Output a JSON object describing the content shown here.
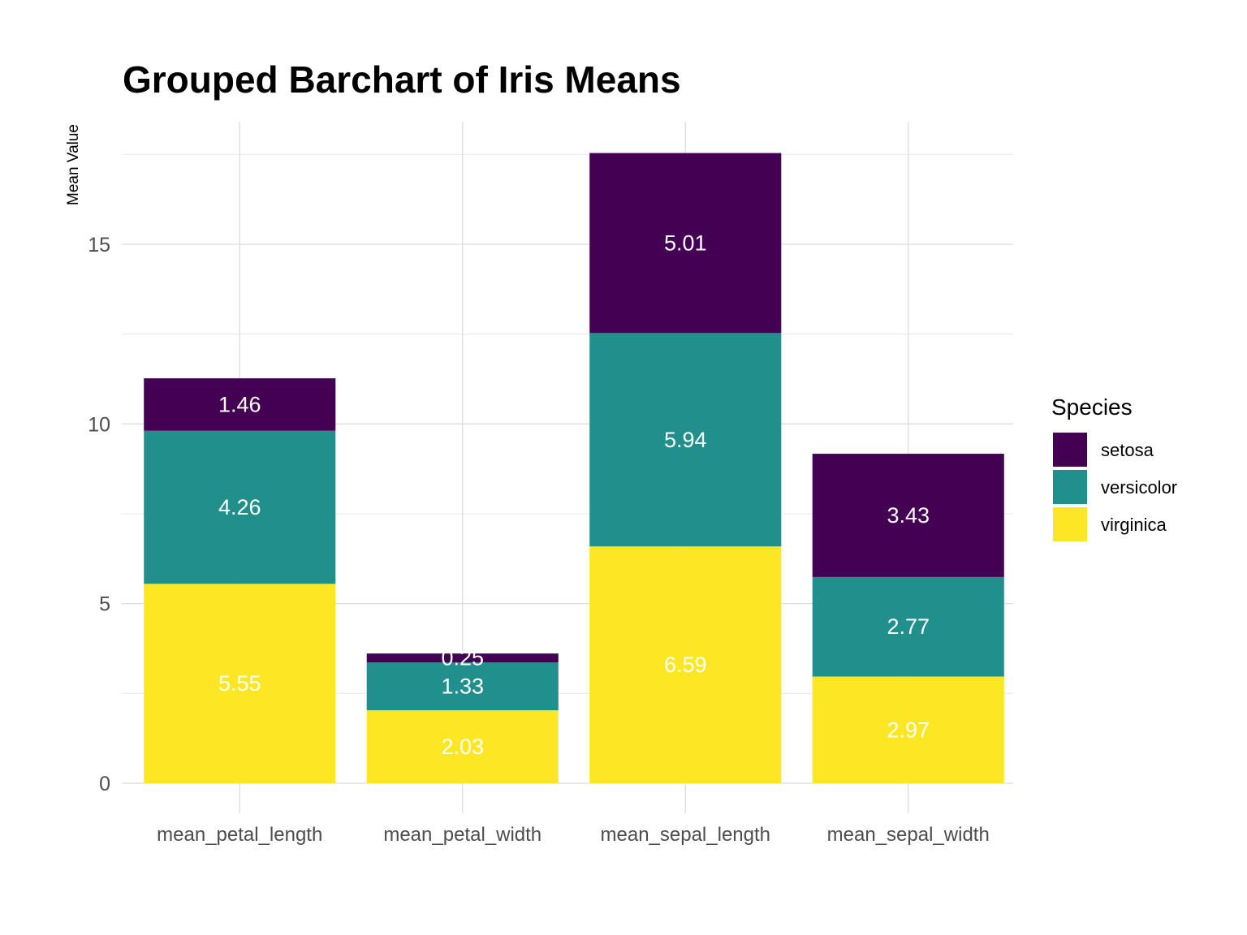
{
  "chart_data": {
    "type": "bar",
    "stacked": true,
    "title": "Grouped Barchart of Iris Means",
    "xlabel": "",
    "ylabel": "Mean Value",
    "categories": [
      "mean_petal_length",
      "mean_petal_width",
      "mean_sepal_length",
      "mean_sepal_width"
    ],
    "series": [
      {
        "name": "virginica",
        "color": "#FDE725",
        "values": [
          5.55,
          2.03,
          6.59,
          2.97
        ]
      },
      {
        "name": "versicolor",
        "color": "#21908C",
        "values": [
          4.26,
          1.33,
          5.94,
          2.77
        ]
      },
      {
        "name": "setosa",
        "color": "#440154",
        "values": [
          1.46,
          0.25,
          5.01,
          3.43
        ]
      }
    ],
    "ylim": [
      0,
      17.5
    ],
    "yticks": [
      0,
      5,
      10,
      15
    ],
    "grid": true,
    "legend": {
      "title": "Species",
      "position": "right",
      "entries": [
        {
          "label": "setosa",
          "color": "#440154"
        },
        {
          "label": "versicolor",
          "color": "#21908C"
        },
        {
          "label": "virginica",
          "color": "#FDE725"
        }
      ]
    },
    "data_label_color": "#FFFFFF"
  }
}
